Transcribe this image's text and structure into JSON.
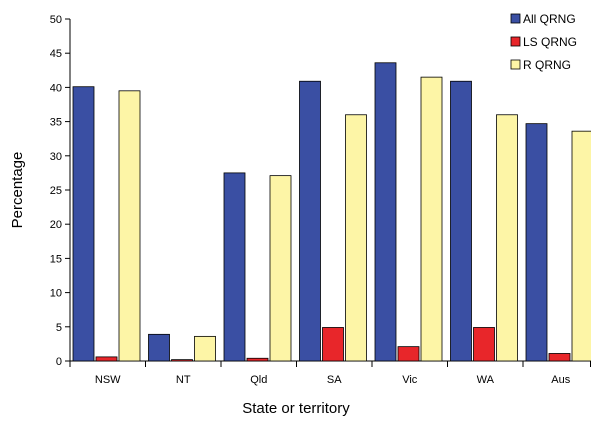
{
  "chart_data": {
    "type": "bar",
    "title": "",
    "xlabel": "State or territory",
    "ylabel": "Percentage",
    "ylim": [
      0,
      50
    ],
    "yticks": [
      0,
      5,
      10,
      15,
      20,
      25,
      30,
      35,
      40,
      45,
      50
    ],
    "grid": false,
    "legend_position": "top-right",
    "categories": [
      "NSW",
      "NT",
      "Qld",
      "SA",
      "Vic",
      "WA",
      "Aus"
    ],
    "series": [
      {
        "name": "All QRNG",
        "color": "#3a4fa3",
        "values": [
          40.1,
          3.9,
          27.5,
          40.9,
          43.6,
          40.9,
          34.7
        ]
      },
      {
        "name": "LS QRNG",
        "color": "#e8262a",
        "values": [
          0.6,
          0.2,
          0.4,
          4.9,
          2.1,
          4.9,
          1.1
        ]
      },
      {
        "name": "R QRNG",
        "color": "#fdf5a6",
        "values": [
          39.5,
          3.6,
          27.1,
          36.0,
          41.5,
          36.0,
          33.6
        ]
      }
    ]
  }
}
